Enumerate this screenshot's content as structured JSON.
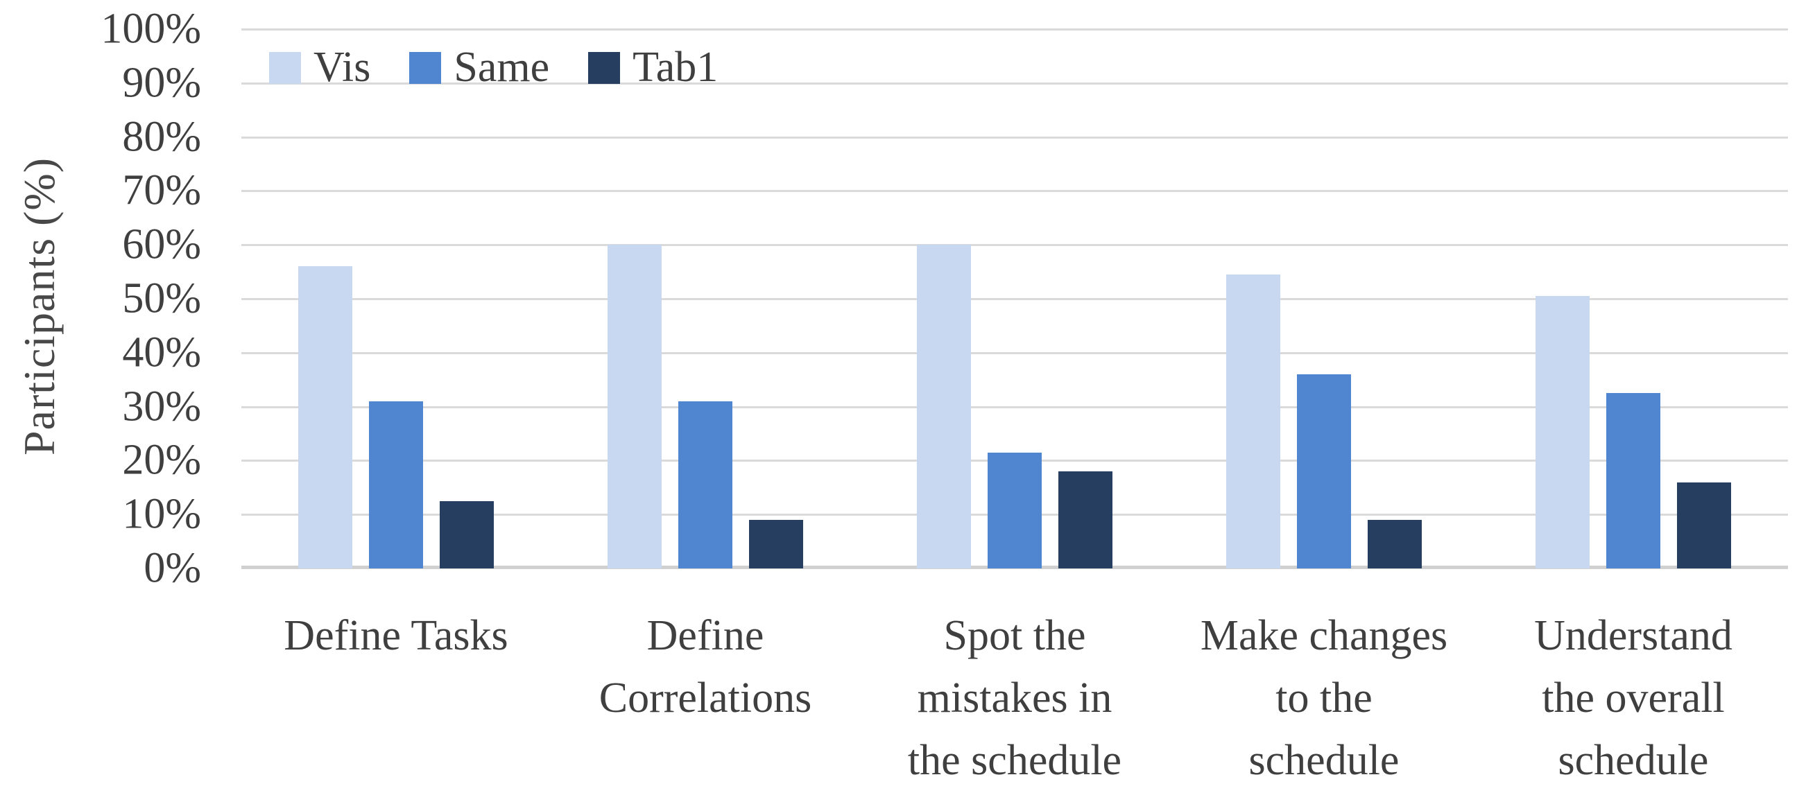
{
  "chart_data": {
    "type": "bar",
    "ylabel": "Participants (%)",
    "categories": [
      "Define Tasks",
      "Define\nCorrelations",
      "Spot the\nmistakes in\nthe schedule",
      "Make changes\nto the\nschedule",
      "Understand\nthe overall\nschedule"
    ],
    "series": [
      {
        "name": "Vis",
        "color": "#c8d8f0",
        "values": [
          56,
          60,
          60,
          54.5,
          50.5
        ]
      },
      {
        "name": "Same",
        "color": "#5085d0",
        "values": [
          31,
          31,
          21.5,
          36,
          32.5
        ]
      },
      {
        "name": "Tab1",
        "color": "#263e60",
        "values": [
          12.5,
          9,
          18,
          9,
          16
        ]
      }
    ],
    "y_axis": {
      "min": 0,
      "max": 100,
      "step": 10,
      "tick_suffix": "%",
      "tick_labels": [
        "0%",
        "10%",
        "20%",
        "30%",
        "40%",
        "50%",
        "60%",
        "70%",
        "80%",
        "90%",
        "100%"
      ]
    },
    "grid": true,
    "legend_position": "top-left-inside",
    "colors": {
      "gridline": "#dadada",
      "axis_line": "#d0d0d0",
      "text": "#3f3f3f",
      "background": "#ffffff"
    }
  }
}
